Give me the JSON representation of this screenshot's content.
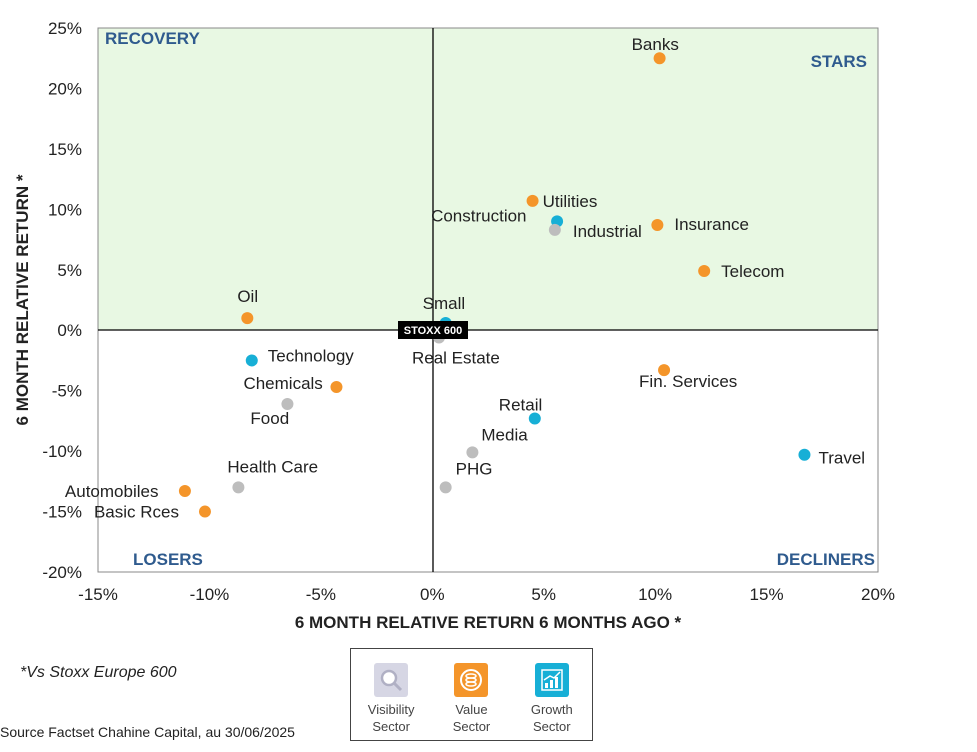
{
  "chart_data": {
    "type": "scatter",
    "xlabel": "6 MONTH RELATIVE RETURN 6 MONTHS AGO *",
    "ylabel": "6 MONTH RELATIVE RETURN *",
    "xlim": [
      -15,
      20
    ],
    "ylim": [
      -20,
      25
    ],
    "xticks": [
      -15,
      -10,
      -5,
      0,
      5,
      10,
      15,
      20
    ],
    "yticks": [
      -20,
      -15,
      -10,
      -5,
      0,
      5,
      10,
      15,
      20,
      25
    ],
    "tick_suffix": "%",
    "benchmark": "STOXX 600",
    "quadrants": {
      "top_left": "RECOVERY",
      "top_right": "STARS",
      "bottom_left": "LOSERS",
      "bottom_right": "DECLINERS"
    },
    "colors": {
      "value": "#F4952A",
      "growth": "#17AFD6",
      "visibility": "#BDBDBD",
      "positive_area": "#E8F8E3",
      "quadrant_text": "#2F5B8E"
    },
    "points": [
      {
        "name": "Banks",
        "x": 10.2,
        "y": 22.5,
        "category": "value"
      },
      {
        "name": "Utilities",
        "x": 4.5,
        "y": 10.7,
        "category": "value"
      },
      {
        "name": "Construction",
        "x": 5.6,
        "y": 9.0,
        "category": "growth"
      },
      {
        "name": "Industrial",
        "x": 5.5,
        "y": 8.3,
        "category": "visibility"
      },
      {
        "name": "Insurance",
        "x": 10.1,
        "y": 8.7,
        "category": "value"
      },
      {
        "name": "Telecom",
        "x": 12.2,
        "y": 4.9,
        "category": "value"
      },
      {
        "name": "Oil",
        "x": -8.3,
        "y": 1.0,
        "category": "value"
      },
      {
        "name": "Small",
        "x": 0.6,
        "y": 0.6,
        "category": "growth"
      },
      {
        "name": "Real Estate",
        "x": 0.3,
        "y": -0.6,
        "category": "visibility"
      },
      {
        "name": "Technology",
        "x": -8.1,
        "y": -2.5,
        "category": "growth"
      },
      {
        "name": "Chemicals",
        "x": -4.3,
        "y": -4.7,
        "category": "value"
      },
      {
        "name": "Food",
        "x": -6.5,
        "y": -6.1,
        "category": "visibility"
      },
      {
        "name": "Fin. Services",
        "x": 10.4,
        "y": -3.3,
        "category": "value"
      },
      {
        "name": "Retail",
        "x": 4.6,
        "y": -7.3,
        "category": "growth"
      },
      {
        "name": "Media",
        "x": 1.8,
        "y": -10.1,
        "category": "visibility"
      },
      {
        "name": "PHG",
        "x": 0.6,
        "y": -13.0,
        "category": "visibility"
      },
      {
        "name": "Health Care",
        "x": -8.7,
        "y": -13.0,
        "category": "visibility"
      },
      {
        "name": "Travel",
        "x": 16.7,
        "y": -10.3,
        "category": "growth"
      },
      {
        "name": "Automobiles",
        "x": -11.1,
        "y": -13.3,
        "category": "value"
      },
      {
        "name": "Basic Rces",
        "x": -10.2,
        "y": -15.0,
        "category": "value"
      }
    ]
  },
  "footnote": "*Vs Stoxx Europe 600",
  "source": "Source Factset Chahine Capital, au 30/06/2025",
  "legend": {
    "items": [
      {
        "line1": "Visibility",
        "line2": "Sector",
        "icon": "magnifier-icon",
        "color": "#BDBDBD"
      },
      {
        "line1": "Value",
        "line2": "Sector",
        "icon": "coin-stack-icon",
        "color": "#F4952A"
      },
      {
        "line1": "Growth",
        "line2": "Sector",
        "icon": "growth-chart-icon",
        "color": "#17AFD6"
      }
    ]
  }
}
